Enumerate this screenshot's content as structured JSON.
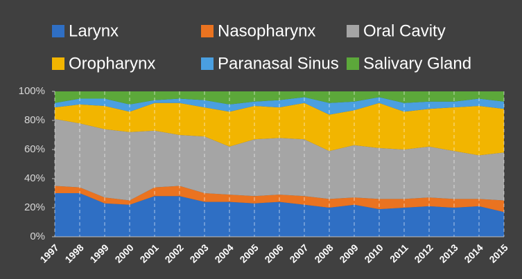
{
  "chart_data": {
    "type": "stacked_area",
    "categories": [
      "1997",
      "1998",
      "1999",
      "2000",
      "2001",
      "2002",
      "2003",
      "2004",
      "2005",
      "2006",
      "2007",
      "2008",
      "2009",
      "2010",
      "2011",
      "2012",
      "2013",
      "2014",
      "2015"
    ],
    "series": [
      {
        "name": "Larynx",
        "color": "#2f6fc4",
        "values": [
          30,
          30,
          23,
          22,
          28,
          28,
          24,
          24,
          23,
          24,
          22,
          20,
          22,
          19,
          20,
          21,
          20,
          21,
          17
        ]
      },
      {
        "name": "Nasopharynx",
        "color": "#ea7320",
        "values": [
          5,
          4,
          4,
          3,
          6,
          7,
          6,
          5,
          5,
          5,
          6,
          6,
          5,
          7,
          6,
          6,
          6,
          5,
          8
        ]
      },
      {
        "name": "Oral Cavity",
        "color": "#a5a5a5",
        "values": [
          46,
          44,
          47,
          47,
          39,
          35,
          39,
          33,
          39,
          39,
          39,
          33,
          36,
          35,
          34,
          35,
          33,
          30,
          33
        ]
      },
      {
        "name": "Oropharynx",
        "color": "#f2b500",
        "values": [
          8,
          13,
          16,
          14,
          19,
          22,
          20,
          24,
          23,
          21,
          25,
          25,
          24,
          31,
          26,
          26,
          30,
          34,
          30
        ]
      },
      {
        "name": "Paranasal Sinus",
        "color": "#4a9fe0",
        "values": [
          3,
          4,
          5,
          5,
          2,
          3,
          5,
          5,
          3,
          5,
          4,
          8,
          6,
          4,
          6,
          5,
          4,
          5,
          5
        ]
      },
      {
        "name": "Salivary Gland",
        "color": "#5ca83a",
        "values": [
          8,
          5,
          5,
          9,
          6,
          5,
          6,
          9,
          7,
          6,
          4,
          8,
          7,
          4,
          8,
          7,
          7,
          5,
          7
        ]
      }
    ],
    "ylim": [
      0,
      100
    ],
    "yticks": [
      {
        "value": 0,
        "label": "0%"
      },
      {
        "value": 20,
        "label": "20%"
      },
      {
        "value": 40,
        "label": "40%"
      },
      {
        "value": 60,
        "label": "60%"
      },
      {
        "value": 80,
        "label": "80%"
      },
      {
        "value": 100,
        "label": "100%"
      }
    ],
    "grid": "vertical-dashed",
    "legend": "top"
  }
}
